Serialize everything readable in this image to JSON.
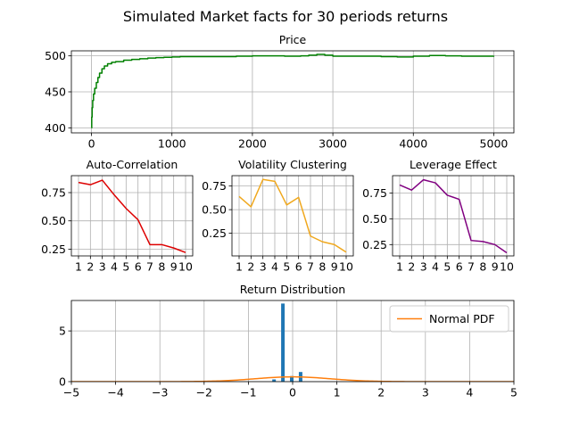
{
  "figure": {
    "suptitle": "Simulated Market facts for 30 periods returns"
  },
  "chart_data": [
    {
      "id": "price",
      "type": "line",
      "title": "Price",
      "xlim": [
        -250,
        5250
      ],
      "ylim": [
        393,
        507
      ],
      "xticks": [
        0,
        1000,
        2000,
        3000,
        4000,
        5000
      ],
      "yticks": [
        400,
        450,
        500
      ],
      "grid": true,
      "color": "#008000",
      "x": [
        0,
        3,
        8,
        15,
        25,
        40,
        60,
        80,
        100,
        130,
        160,
        200,
        250,
        300,
        400,
        500,
        600,
        700,
        800,
        900,
        1000,
        1100,
        1200,
        1400,
        1600,
        1800,
        2000,
        2200,
        2400,
        2600,
        2700,
        2800,
        2900,
        3000,
        3200,
        3400,
        3600,
        3800,
        4000,
        4200,
        4400,
        4600,
        4800,
        5000
      ],
      "y": [
        400,
        415,
        428,
        438,
        447,
        455,
        463,
        470,
        476,
        482,
        486,
        489,
        491,
        492,
        494,
        495,
        496,
        497,
        497.5,
        498,
        498.5,
        499,
        499,
        499,
        499,
        499.5,
        500,
        500,
        499.5,
        500,
        501,
        502,
        501,
        499.5,
        499.5,
        499.5,
        499,
        498.5,
        499.5,
        500.5,
        500,
        499.5,
        499.5,
        500
      ]
    },
    {
      "id": "autocorrelation",
      "type": "line",
      "title": "Auto-Correlation",
      "categories": [
        "1",
        "2",
        "3",
        "4",
        "5",
        "6",
        "7",
        "8",
        "9",
        "10"
      ],
      "values": [
        0.84,
        0.82,
        0.86,
        0.73,
        0.61,
        0.51,
        0.29,
        0.29,
        0.26,
        0.22
      ],
      "xlim": [
        0.4,
        10.6
      ],
      "ylim": [
        0.19,
        0.9
      ],
      "yticks": [
        0.25,
        0.5,
        0.75
      ],
      "ytick_labels": [
        "0.25",
        "0.50",
        "0.75"
      ],
      "grid": true,
      "color": "#dd0000"
    },
    {
      "id": "volatility",
      "type": "line",
      "title": "Volatility Clustering",
      "categories": [
        "1",
        "2",
        "3",
        "4",
        "5",
        "6",
        "7",
        "8",
        "9",
        "10"
      ],
      "values": [
        0.64,
        0.53,
        0.82,
        0.8,
        0.55,
        0.63,
        0.22,
        0.16,
        0.13,
        0.05
      ],
      "xlim": [
        0.4,
        10.6
      ],
      "ylim": [
        0.01,
        0.86
      ],
      "yticks": [
        0.25,
        0.5,
        0.75
      ],
      "ytick_labels": [
        "0.25",
        "0.50",
        "0.75"
      ],
      "grid": true,
      "color": "#f0a81e"
    },
    {
      "id": "leverage",
      "type": "line",
      "title": "Leverage Effect",
      "categories": [
        "1",
        "2",
        "3",
        "4",
        "5",
        "6",
        "7",
        "8",
        "9",
        "10"
      ],
      "values": [
        0.83,
        0.78,
        0.88,
        0.85,
        0.73,
        0.69,
        0.29,
        0.28,
        0.25,
        0.17
      ],
      "xlim": [
        0.4,
        10.6
      ],
      "ylim": [
        0.14,
        0.92
      ],
      "yticks": [
        0.25,
        0.5,
        0.75
      ],
      "ytick_labels": [
        "0.25",
        "0.50",
        "0.75"
      ],
      "grid": true,
      "color": "#800080"
    },
    {
      "id": "returns",
      "type": "bar",
      "title": "Return Distribution",
      "xlim": [
        -5,
        5
      ],
      "ylim": [
        0,
        8
      ],
      "xticks": [
        -5,
        -4,
        -3,
        -2,
        -1,
        0,
        1,
        2,
        3,
        4,
        5
      ],
      "xtick_labels": [
        "−5",
        "−4",
        "−3",
        "−2",
        "−1",
        "0",
        "1",
        "2",
        "3",
        "4",
        "5"
      ],
      "yticks": [
        0,
        5
      ],
      "grid": true,
      "bar_color": "#1f77b4",
      "bins": [
        {
          "x0": -0.46,
          "x1": -0.38,
          "value": 0.22
        },
        {
          "x0": -0.26,
          "x1": -0.18,
          "value": 7.7
        },
        {
          "x0": -0.06,
          "x1": 0.02,
          "value": 0.55
        },
        {
          "x0": 0.14,
          "x1": 0.22,
          "value": 0.95
        }
      ],
      "pdf": {
        "name": "Normal PDF",
        "color": "#ff7f0e",
        "mean": 0.0,
        "std": 0.85
      },
      "legend": {
        "position": "top-right"
      }
    }
  ]
}
